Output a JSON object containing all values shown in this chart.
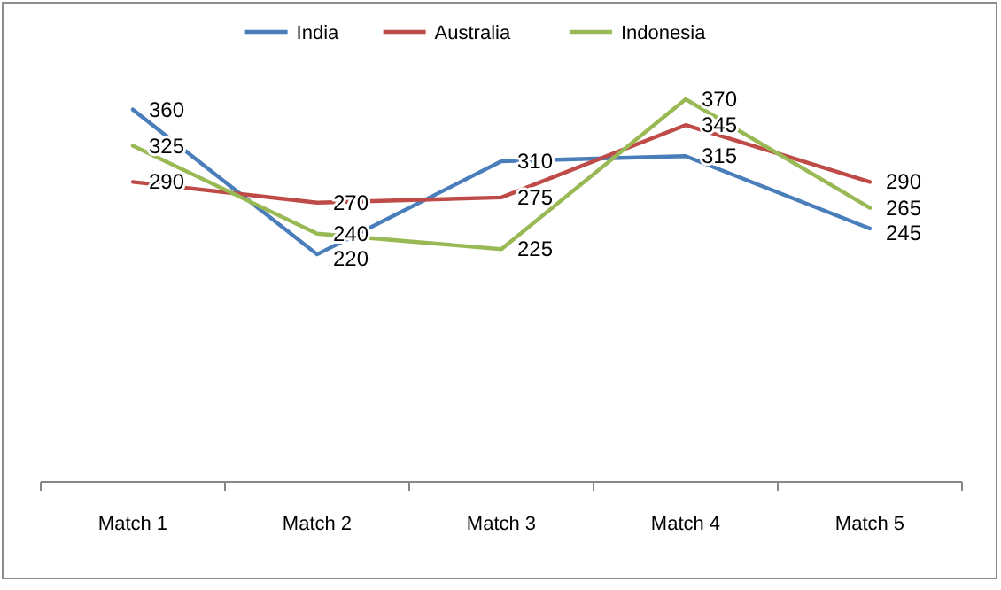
{
  "chart_data": {
    "type": "line",
    "categories": [
      "Match 1",
      "Match 2",
      "Match 3",
      "Match 4",
      "Match 5"
    ],
    "series": [
      {
        "name": "India",
        "color": "#4a7ebb",
        "values": [
          360,
          220,
          310,
          315,
          245
        ]
      },
      {
        "name": "Australia",
        "color": "#be4b48",
        "values": [
          290,
          270,
          275,
          345,
          290
        ]
      },
      {
        "name": "Indonesia",
        "color": "#98b954",
        "values": [
          325,
          240,
          225,
          370,
          265
        ]
      }
    ],
    "tick_labels": "x",
    "data_labels": true,
    "legend": "top",
    "marker": "none",
    "line_style": "solid"
  }
}
